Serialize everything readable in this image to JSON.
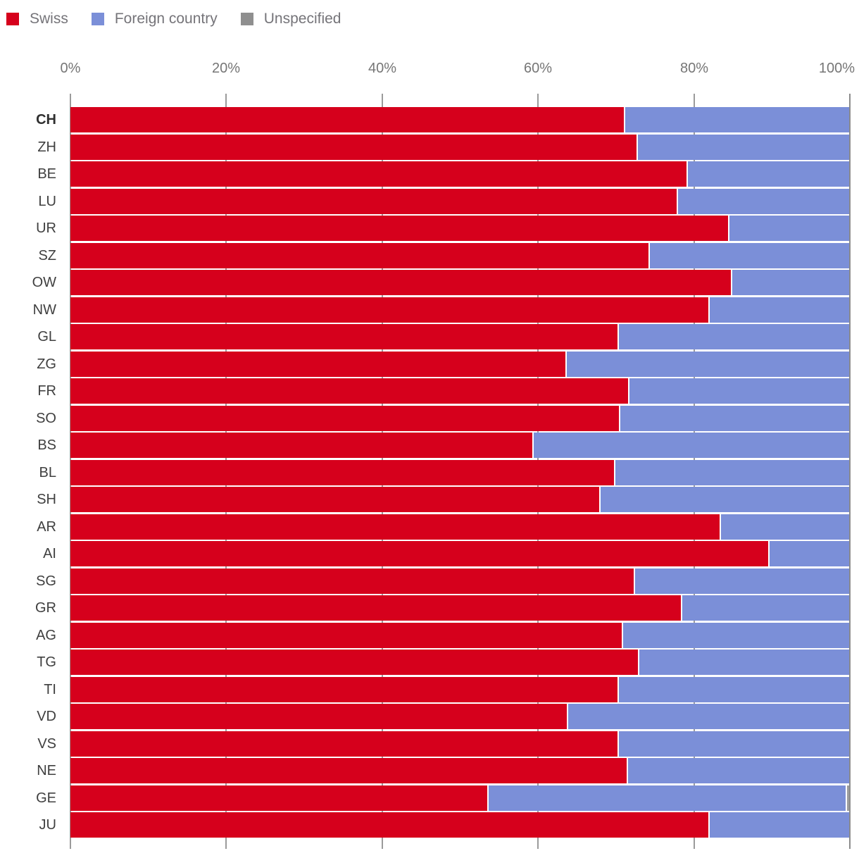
{
  "legend": {
    "items": [
      {
        "label": "Swiss",
        "color": "#D6001C"
      },
      {
        "label": "Foreign country",
        "color": "#7B8FD8"
      },
      {
        "label": "Unspecified",
        "color": "#8F8F8F"
      }
    ]
  },
  "x_axis": {
    "tick_labels": [
      "0%",
      "20%",
      "40%",
      "60%",
      "80%",
      "100%"
    ]
  },
  "chart_data": {
    "type": "bar",
    "orientation": "horizontal",
    "stacked": true,
    "unit": "%",
    "xlim": [
      0,
      100
    ],
    "x_ticks": [
      0,
      20,
      40,
      60,
      80,
      100
    ],
    "grid": "vertical tick segments visible in gaps between bars; gray border line at 100%",
    "legend_position": "top-left",
    "emphasized_category": "CH",
    "categories": [
      "CH",
      "ZH",
      "BE",
      "LU",
      "UR",
      "SZ",
      "OW",
      "NW",
      "GL",
      "ZG",
      "FR",
      "SO",
      "BS",
      "BL",
      "SH",
      "AR",
      "AI",
      "SG",
      "GR",
      "AG",
      "TG",
      "TI",
      "VD",
      "VS",
      "NE",
      "GE",
      "JU"
    ],
    "series": [
      {
        "name": "Swiss",
        "color": "#D6001C",
        "values": [
          71.0,
          72.6,
          79.0,
          77.8,
          84.4,
          74.2,
          84.7,
          81.8,
          70.2,
          63.5,
          71.5,
          70.4,
          59.3,
          69.7,
          67.8,
          83.3,
          89.5,
          72.3,
          78.3,
          70.7,
          72.8,
          70.2,
          63.7,
          70.2,
          71.4,
          53.5,
          81.8
        ]
      },
      {
        "name": "Foreign country",
        "color": "#7B8FD8",
        "values": [
          28.9,
          27.3,
          20.9,
          22.1,
          15.5,
          25.7,
          15.2,
          18.1,
          29.7,
          36.4,
          28.4,
          29.5,
          40.6,
          30.2,
          32.1,
          16.6,
          10.4,
          27.6,
          21.6,
          29.2,
          27.1,
          29.7,
          36.2,
          29.7,
          28.5,
          46.0,
          18.1
        ]
      },
      {
        "name": "Unspecified",
        "color": "#9E9E9E",
        "values": [
          0.1,
          0.1,
          0.1,
          0.1,
          0.1,
          0.1,
          0.1,
          0.1,
          0.1,
          0.1,
          0.1,
          0.1,
          0.1,
          0.1,
          0.1,
          0.1,
          0.1,
          0.1,
          0.1,
          0.1,
          0.1,
          0.1,
          0.1,
          0.1,
          0.1,
          0.5,
          0.1
        ]
      }
    ]
  }
}
